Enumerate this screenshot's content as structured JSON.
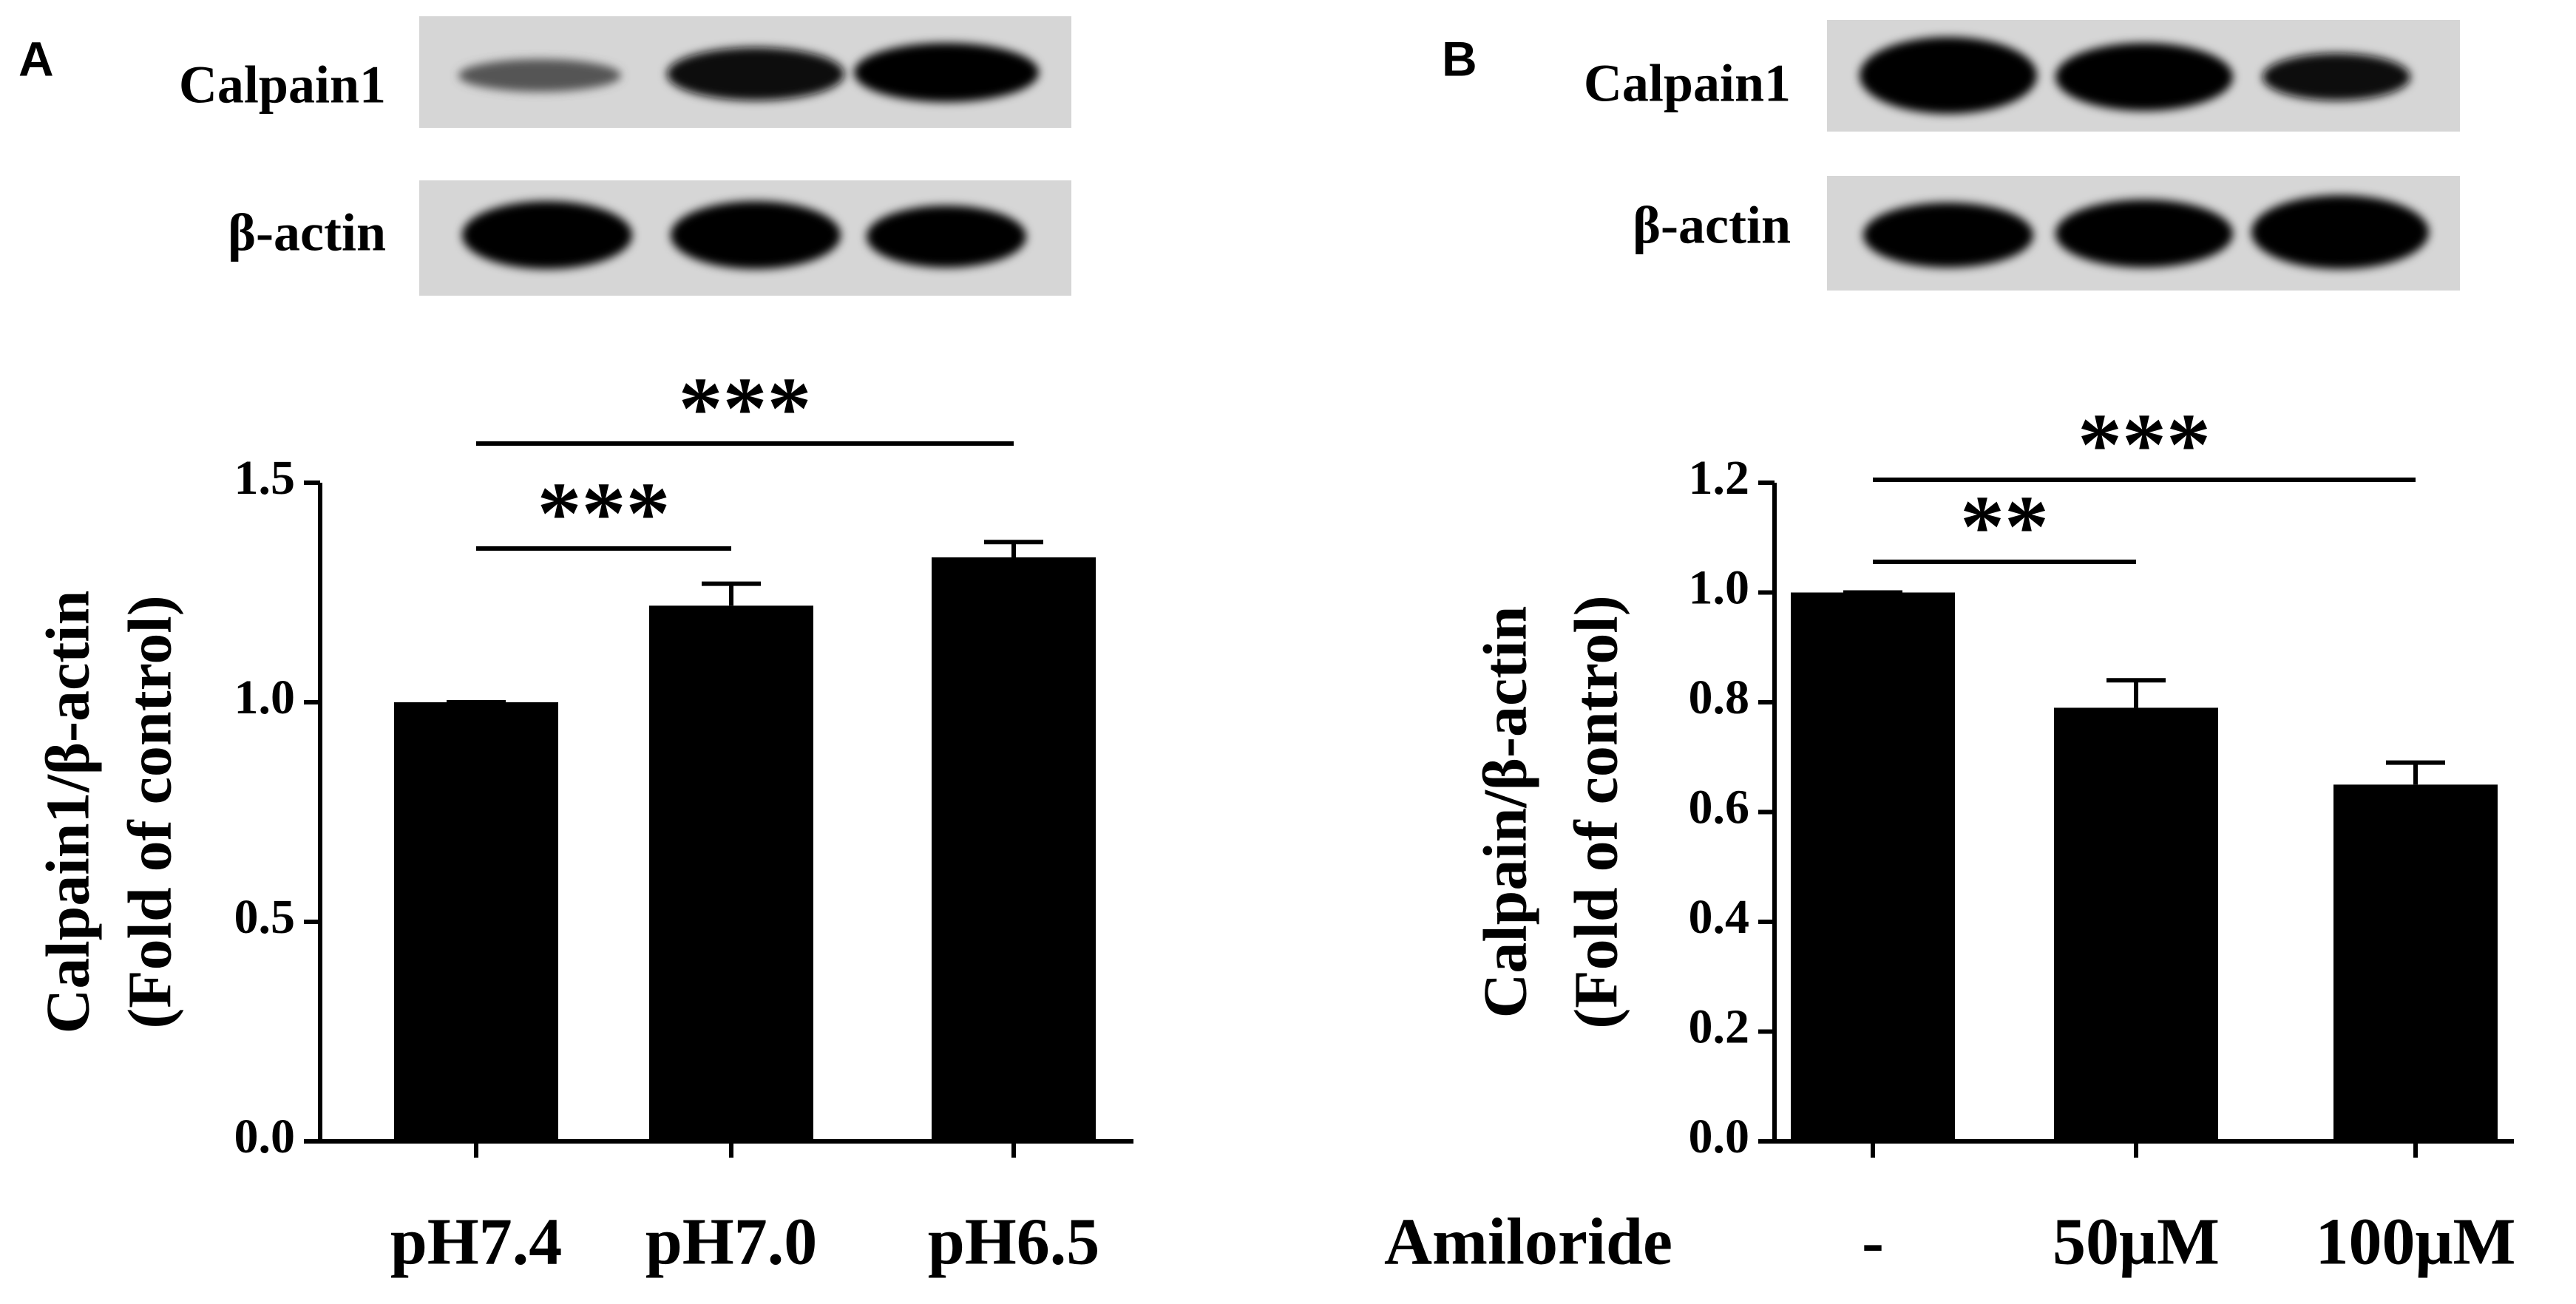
{
  "chart_data": [
    {
      "type": "bar",
      "panel": "A",
      "blot_labels": [
        "Calpain1",
        "β-actin"
      ],
      "y_label": [
        "Calpain1/β-actin",
        "(Fold of control)"
      ],
      "categories": [
        "pH7.4",
        "pH7.0",
        "pH6.5"
      ],
      "values": [
        1.0,
        1.22,
        1.33
      ],
      "errors": [
        0,
        0.05,
        0.035
      ],
      "color": "#000000",
      "ylim": [
        0,
        1.5
      ],
      "yticks": [
        {
          "value": 0,
          "label": "0.0"
        },
        0.5,
        {
          "value": 1,
          "label": "1.0"
        },
        1.5
      ],
      "significance": [
        {
          "label": "***",
          "between": [
            "pH7.4",
            "pH7.0"
          ]
        },
        {
          "label": "***",
          "between": [
            "pH7.4",
            "pH6.5"
          ]
        }
      ]
    },
    {
      "type": "bar",
      "panel": "B",
      "blot_labels": [
        "Calpain1",
        "β-actin"
      ],
      "y_label": [
        "Calpain/β-actin",
        "(Fold of control)"
      ],
      "x_label": "Amiloride",
      "categories": [
        "-",
        "50μM",
        "100μM"
      ],
      "values": [
        1.0,
        0.79,
        0.65
      ],
      "errors": [
        0,
        0.05,
        0.04
      ],
      "color": "#000000",
      "ylim": [
        0,
        1.2
      ],
      "yticks": [
        {
          "value": 0,
          "label": "0.0"
        },
        0.2,
        0.4,
        0.6,
        0.8,
        {
          "value": 1,
          "label": "1.0"
        },
        1.2
      ],
      "significance": [
        {
          "label": "**",
          "between": [
            "-",
            "50μM"
          ]
        },
        {
          "label": "***",
          "between": [
            "-",
            "100μM"
          ]
        }
      ]
    }
  ]
}
